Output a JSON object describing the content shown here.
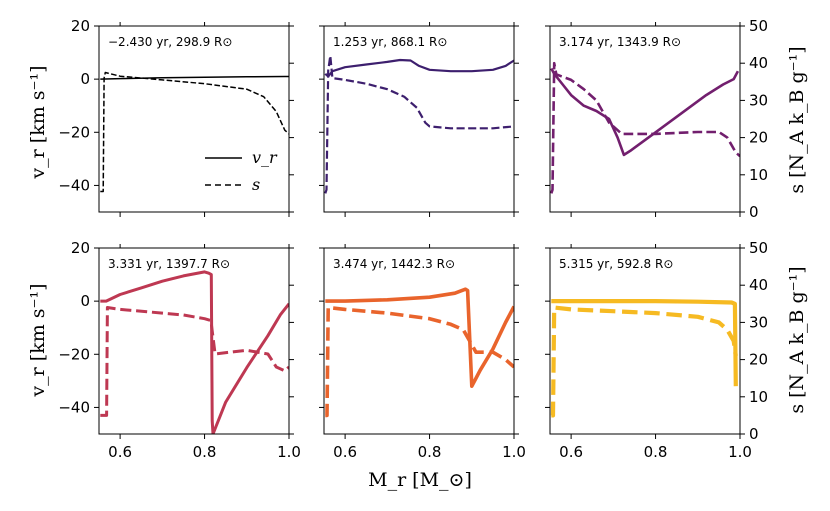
{
  "chart_data": {
    "type": "line",
    "layout": "2x3 grid of panels sharing x axis",
    "xlabel": "M_r [M_⊙]",
    "ylabel_left": "v_r [km s⁻¹]",
    "ylabel_right": "s [N_A k_B g⁻¹]",
    "xlim": [
      0.55,
      1.0
    ],
    "ylim_left": [
      -50,
      20
    ],
    "ylim_right": [
      0,
      50
    ],
    "x_ticks": [
      0.6,
      0.8,
      1.0
    ],
    "x_tick_labels": [
      "0.6",
      "0.8",
      "1.0"
    ],
    "y_left_ticks": [
      20,
      0,
      -20,
      -40
    ],
    "y_left_tick_labels": [
      "20",
      "0",
      "−20",
      "−40"
    ],
    "y_right_ticks": [
      50,
      40,
      30,
      20,
      10,
      0
    ],
    "y_right_tick_labels": [
      "50",
      "40",
      "30",
      "20",
      "10",
      "0"
    ],
    "legend": {
      "position": "inside top-left panel, lower right",
      "entries": [
        {
          "label": "v_r",
          "style": "solid"
        },
        {
          "label": "s",
          "style": "dashed"
        }
      ]
    },
    "panels": [
      {
        "annotation": "−2.430 yr, 298.9 R⊙",
        "color": "#000000",
        "linewidth": 1.5,
        "vr": [
          [
            0.553,
            0
          ],
          [
            0.6,
            0.2
          ],
          [
            0.7,
            0.5
          ],
          [
            0.8,
            0.7
          ],
          [
            0.9,
            0.9
          ],
          [
            0.99,
            1.0
          ],
          [
            1.0,
            1.0
          ]
        ],
        "s": [
          [
            0.553,
            5.5
          ],
          [
            0.56,
            5.5
          ],
          [
            0.562,
            36
          ],
          [
            0.565,
            37.5
          ],
          [
            0.6,
            36.5
          ],
          [
            0.7,
            35.5
          ],
          [
            0.8,
            34.5
          ],
          [
            0.9,
            33
          ],
          [
            0.94,
            31
          ],
          [
            0.97,
            27
          ],
          [
            0.99,
            22
          ],
          [
            1.0,
            21
          ]
        ]
      },
      {
        "annotation": "1.253 yr, 868.1 R⊙",
        "color": "#3d1f6e",
        "linewidth": 2.2,
        "vr": [
          [
            0.553,
            2
          ],
          [
            0.56,
            1
          ],
          [
            0.57,
            3
          ],
          [
            0.6,
            4.5
          ],
          [
            0.65,
            5.5
          ],
          [
            0.7,
            6.5
          ],
          [
            0.73,
            7.2
          ],
          [
            0.755,
            7
          ],
          [
            0.775,
            5
          ],
          [
            0.8,
            3.5
          ],
          [
            0.85,
            3
          ],
          [
            0.9,
            3
          ],
          [
            0.95,
            3.5
          ],
          [
            0.98,
            5
          ],
          [
            1.0,
            7
          ]
        ],
        "s": [
          [
            0.553,
            5
          ],
          [
            0.556,
            6
          ],
          [
            0.56,
            38
          ],
          [
            0.565,
            42
          ],
          [
            0.57,
            36
          ],
          [
            0.6,
            35.5
          ],
          [
            0.65,
            34.5
          ],
          [
            0.7,
            33
          ],
          [
            0.74,
            31
          ],
          [
            0.77,
            28
          ],
          [
            0.79,
            24
          ],
          [
            0.8,
            23
          ],
          [
            0.85,
            22.5
          ],
          [
            0.9,
            22.5
          ],
          [
            0.95,
            22.5
          ],
          [
            1.0,
            23
          ]
        ]
      },
      {
        "annotation": "3.174 yr, 1343.9 R⊙",
        "color": "#721f6e",
        "linewidth": 2.6,
        "vr": [
          [
            0.553,
            4
          ],
          [
            0.56,
            2
          ],
          [
            0.58,
            -2
          ],
          [
            0.6,
            -6
          ],
          [
            0.63,
            -10
          ],
          [
            0.66,
            -12
          ],
          [
            0.69,
            -15
          ],
          [
            0.71,
            -22
          ],
          [
            0.725,
            -28.5
          ],
          [
            0.74,
            -27
          ],
          [
            0.8,
            -20
          ],
          [
            0.86,
            -13
          ],
          [
            0.92,
            -6
          ],
          [
            0.96,
            -2
          ],
          [
            0.985,
            0
          ],
          [
            0.995,
            3
          ]
        ],
        "s": [
          [
            0.553,
            5
          ],
          [
            0.556,
            6
          ],
          [
            0.56,
            40
          ],
          [
            0.565,
            37
          ],
          [
            0.6,
            35.5
          ],
          [
            0.63,
            33
          ],
          [
            0.66,
            30
          ],
          [
            0.69,
            24
          ],
          [
            0.72,
            21
          ],
          [
            0.8,
            21
          ],
          [
            0.9,
            21.5
          ],
          [
            0.95,
            21.5
          ],
          [
            0.97,
            20
          ],
          [
            0.99,
            16
          ],
          [
            1.0,
            15
          ]
        ]
      },
      {
        "annotation": "3.331 yr, 1397.7 R⊙",
        "color": "#be3852",
        "linewidth": 3.0,
        "vr": [
          [
            0.553,
            0
          ],
          [
            0.567,
            0
          ],
          [
            0.6,
            2.5
          ],
          [
            0.65,
            5
          ],
          [
            0.7,
            7.5
          ],
          [
            0.75,
            9.5
          ],
          [
            0.8,
            11
          ],
          [
            0.81,
            10.5
          ],
          [
            0.816,
            10
          ],
          [
            0.818,
            -45
          ],
          [
            0.82,
            -50
          ],
          [
            0.85,
            -38
          ],
          [
            0.9,
            -25
          ],
          [
            0.95,
            -13
          ],
          [
            0.98,
            -5
          ],
          [
            1.0,
            -1
          ]
        ],
        "s": [
          [
            0.553,
            5
          ],
          [
            0.568,
            5
          ],
          [
            0.57,
            34
          ],
          [
            0.6,
            33.5
          ],
          [
            0.7,
            32.5
          ],
          [
            0.75,
            32
          ],
          [
            0.8,
            31
          ],
          [
            0.815,
            30.5
          ],
          [
            0.825,
            21.5
          ],
          [
            0.86,
            22
          ],
          [
            0.9,
            22.5
          ],
          [
            0.95,
            21.5
          ],
          [
            0.97,
            18
          ],
          [
            0.99,
            17
          ],
          [
            1.0,
            18
          ]
        ]
      },
      {
        "annotation": "3.474 yr, 1442.3 R⊙",
        "color": "#e9642c",
        "linewidth": 3.6,
        "vr": [
          [
            0.553,
            0
          ],
          [
            0.6,
            0
          ],
          [
            0.7,
            0.5
          ],
          [
            0.8,
            1.5
          ],
          [
            0.86,
            3
          ],
          [
            0.885,
            4.5
          ],
          [
            0.89,
            4
          ],
          [
            0.9,
            -32
          ],
          [
            0.92,
            -26
          ],
          [
            0.95,
            -18
          ],
          [
            0.98,
            -8
          ],
          [
            1.0,
            -2
          ]
        ],
        "s": [
          [
            0.553,
            5
          ],
          [
            0.557,
            5
          ],
          [
            0.56,
            34
          ],
          [
            0.6,
            33.5
          ],
          [
            0.7,
            32.5
          ],
          [
            0.8,
            31
          ],
          [
            0.85,
            29.5
          ],
          [
            0.88,
            28
          ],
          [
            0.895,
            25
          ],
          [
            0.91,
            22
          ],
          [
            0.95,
            22
          ],
          [
            0.98,
            20
          ],
          [
            1.0,
            18
          ]
        ]
      },
      {
        "annotation": "5.315 yr, 592.8 R⊙",
        "color": "#f6ba22",
        "linewidth": 4.2,
        "vr": [
          [
            0.553,
            0
          ],
          [
            0.6,
            0
          ],
          [
            0.7,
            0
          ],
          [
            0.8,
            0
          ],
          [
            0.9,
            -0.2
          ],
          [
            0.98,
            -0.5
          ],
          [
            0.988,
            -1
          ],
          [
            0.99,
            -32
          ]
        ],
        "s": [
          [
            0.553,
            5
          ],
          [
            0.557,
            5
          ],
          [
            0.56,
            34
          ],
          [
            0.6,
            33.5
          ],
          [
            0.7,
            33
          ],
          [
            0.8,
            32.5
          ],
          [
            0.9,
            31.5
          ],
          [
            0.95,
            30
          ],
          [
            0.97,
            28
          ],
          [
            0.985,
            25
          ],
          [
            0.99,
            21
          ]
        ]
      }
    ]
  }
}
